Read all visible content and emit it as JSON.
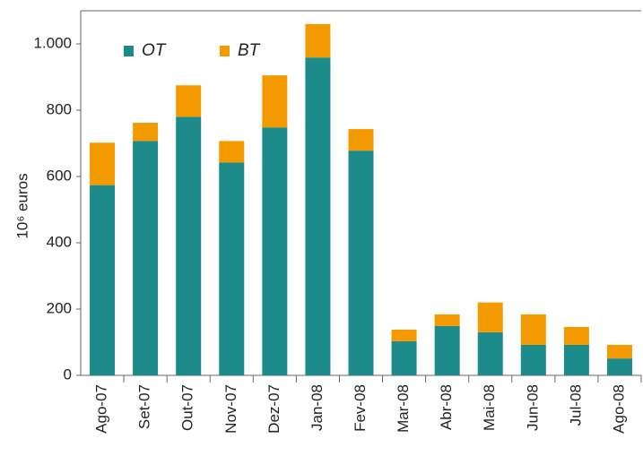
{
  "chart_data": {
    "type": "stacked_bar",
    "y_label": "10⁶ euros",
    "categories": [
      "Ago-07",
      "Set-07",
      "Out-07",
      "Nov-07",
      "Dez-07",
      "Jan-08",
      "Fev-08",
      "Mar-08",
      "Abr-08",
      "Mai-08",
      "Jun-08",
      "Jul-08",
      "Ago-08"
    ],
    "series": [
      {
        "name": "OT",
        "color": "#1c8b8a",
        "values": [
          574,
          707,
          780,
          642,
          748,
          959,
          678,
          103,
          149,
          130,
          92,
          92,
          51
        ]
      },
      {
        "name": "BT",
        "color": "#f39a00",
        "values": [
          128,
          55,
          95,
          65,
          157,
          101,
          65,
          35,
          35,
          90,
          92,
          54,
          41
        ]
      }
    ],
    "ylim": [
      0,
      1100
    ],
    "yticks": [
      0,
      200,
      400,
      600,
      800,
      {
        "value": 1000,
        "label": "1.000"
      }
    ],
    "legend": "upper left"
  }
}
